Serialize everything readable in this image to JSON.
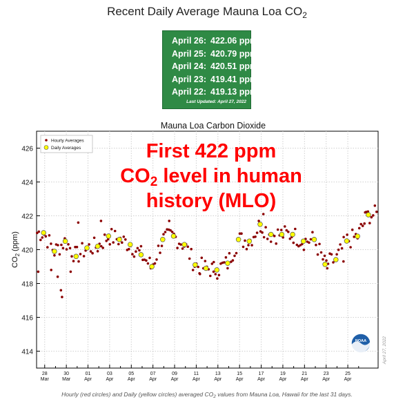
{
  "header": {
    "title_prefix": "Recent Daily Average Mauna Loa CO",
    "title_sub": "2"
  },
  "readings": [
    {
      "date": "April 26:",
      "value": "422.06 ppm"
    },
    {
      "date": "April 25:",
      "value": "420.79 ppm"
    },
    {
      "date": "April 24:",
      "value": "420.51 ppm"
    },
    {
      "date": "April 23:",
      "value": "419.41 ppm"
    },
    {
      "date": "April 22:",
      "value": "419.13 ppm"
    }
  ],
  "last_updated": "Last Updated: April 27, 2022",
  "colors": {
    "panel_bg": "#2f8a45",
    "hourly_fill": "#8b0000",
    "daily_fill": "#ffff00",
    "annotation": "#ff0000",
    "noaa_blue": "#1f5fa8"
  },
  "chart_data": {
    "type": "scatter",
    "title": "Mauna Loa Carbon Dioxide",
    "ylabel_prefix": "CO",
    "ylabel_sub": "2",
    "ylabel_suffix": " (ppm)",
    "ylim": [
      413,
      427
    ],
    "xlim": [
      27.25,
      58.8
    ],
    "y_ticks": [
      414,
      416,
      418,
      420,
      422,
      424,
      426
    ],
    "x_ticks": [
      {
        "x": 28,
        "day": "28",
        "month": "Mar"
      },
      {
        "x": 30,
        "day": "30",
        "month": "Mar"
      },
      {
        "x": 32,
        "day": "01",
        "month": "Apr"
      },
      {
        "x": 34,
        "day": "03",
        "month": "Apr"
      },
      {
        "x": 36,
        "day": "05",
        "month": "Apr"
      },
      {
        "x": 38,
        "day": "07",
        "month": "Apr"
      },
      {
        "x": 40,
        "day": "09",
        "month": "Apr"
      },
      {
        "x": 42,
        "day": "11",
        "month": "Apr"
      },
      {
        "x": 44,
        "day": "13",
        "month": "Apr"
      },
      {
        "x": 46,
        "day": "15",
        "month": "Apr"
      },
      {
        "x": 48,
        "day": "17",
        "month": "Apr"
      },
      {
        "x": 50,
        "day": "19",
        "month": "Apr"
      },
      {
        "x": 52,
        "day": "21",
        "month": "Apr"
      },
      {
        "x": 54,
        "day": "23",
        "month": "Apr"
      },
      {
        "x": 56,
        "day": "25",
        "month": "Apr"
      }
    ],
    "legend": {
      "placement": "top-left",
      "hourly_label": "Hourly Averages",
      "daily_label": "Daily Averages"
    },
    "annotation": {
      "line1": "First 422 ppm",
      "line2_prefix": "CO",
      "line2_sub": "2",
      "line2_suffix": " level in human",
      "line3": "history (MLO)"
    },
    "noaa_logo_text": "NOAA",
    "side_label": "April 27, 2022",
    "daily": [
      {
        "x": 27.9,
        "y": 421.0
      },
      {
        "x": 28.9,
        "y": 419.9
      },
      {
        "x": 29.9,
        "y": 420.5
      },
      {
        "x": 30.9,
        "y": 419.6
      },
      {
        "x": 31.9,
        "y": 420.1
      },
      {
        "x": 32.9,
        "y": 420.2
      },
      {
        "x": 33.9,
        "y": 420.8
      },
      {
        "x": 34.9,
        "y": 420.6
      },
      {
        "x": 35.9,
        "y": 420.3
      },
      {
        "x": 36.9,
        "y": 419.7
      },
      {
        "x": 37.9,
        "y": 419.0
      },
      {
        "x": 38.9,
        "y": 420.6
      },
      {
        "x": 39.9,
        "y": 420.8
      },
      {
        "x": 40.9,
        "y": 420.3
      },
      {
        "x": 41.9,
        "y": 419.1
      },
      {
        "x": 42.9,
        "y": 418.9
      },
      {
        "x": 43.9,
        "y": 418.8
      },
      {
        "x": 44.9,
        "y": 419.2
      },
      {
        "x": 45.9,
        "y": 420.6
      },
      {
        "x": 46.9,
        "y": 420.5
      },
      {
        "x": 47.9,
        "y": 421.5
      },
      {
        "x": 48.9,
        "y": 420.9
      },
      {
        "x": 49.9,
        "y": 420.9
      },
      {
        "x": 50.9,
        "y": 420.9
      },
      {
        "x": 51.9,
        "y": 420.5
      },
      {
        "x": 52.9,
        "y": 420.6
      },
      {
        "x": 53.9,
        "y": 419.13
      },
      {
        "x": 54.9,
        "y": 419.41
      },
      {
        "x": 55.9,
        "y": 420.51
      },
      {
        "x": 56.9,
        "y": 420.79
      },
      {
        "x": 57.9,
        "y": 422.06
      }
    ],
    "hourly_outliers": [
      {
        "x": 29.5,
        "y": 417.6
      },
      {
        "x": 29.6,
        "y": 417.2
      },
      {
        "x": 28.6,
        "y": 418.8
      },
      {
        "x": 29.2,
        "y": 418.4
      },
      {
        "x": 30.4,
        "y": 418.7
      },
      {
        "x": 27.4,
        "y": 418.7
      },
      {
        "x": 42.3,
        "y": 418.6
      },
      {
        "x": 43.6,
        "y": 418.7
      },
      {
        "x": 37.8,
        "y": 418.9
      },
      {
        "x": 54.1,
        "y": 418.9
      },
      {
        "x": 55.6,
        "y": 419.3
      },
      {
        "x": 31.1,
        "y": 421.6
      },
      {
        "x": 33.2,
        "y": 421.7
      },
      {
        "x": 48.2,
        "y": 422.1
      },
      {
        "x": 57.6,
        "y": 422.2
      },
      {
        "x": 39.5,
        "y": 421.7
      }
    ]
  },
  "footnote": {
    "prefix": "Hourly (red circles) and Daily (yellow circles) averaged CO",
    "sub": "2",
    "suffix": " values from Mauna Loa, Hawaii for the last 31 days."
  }
}
